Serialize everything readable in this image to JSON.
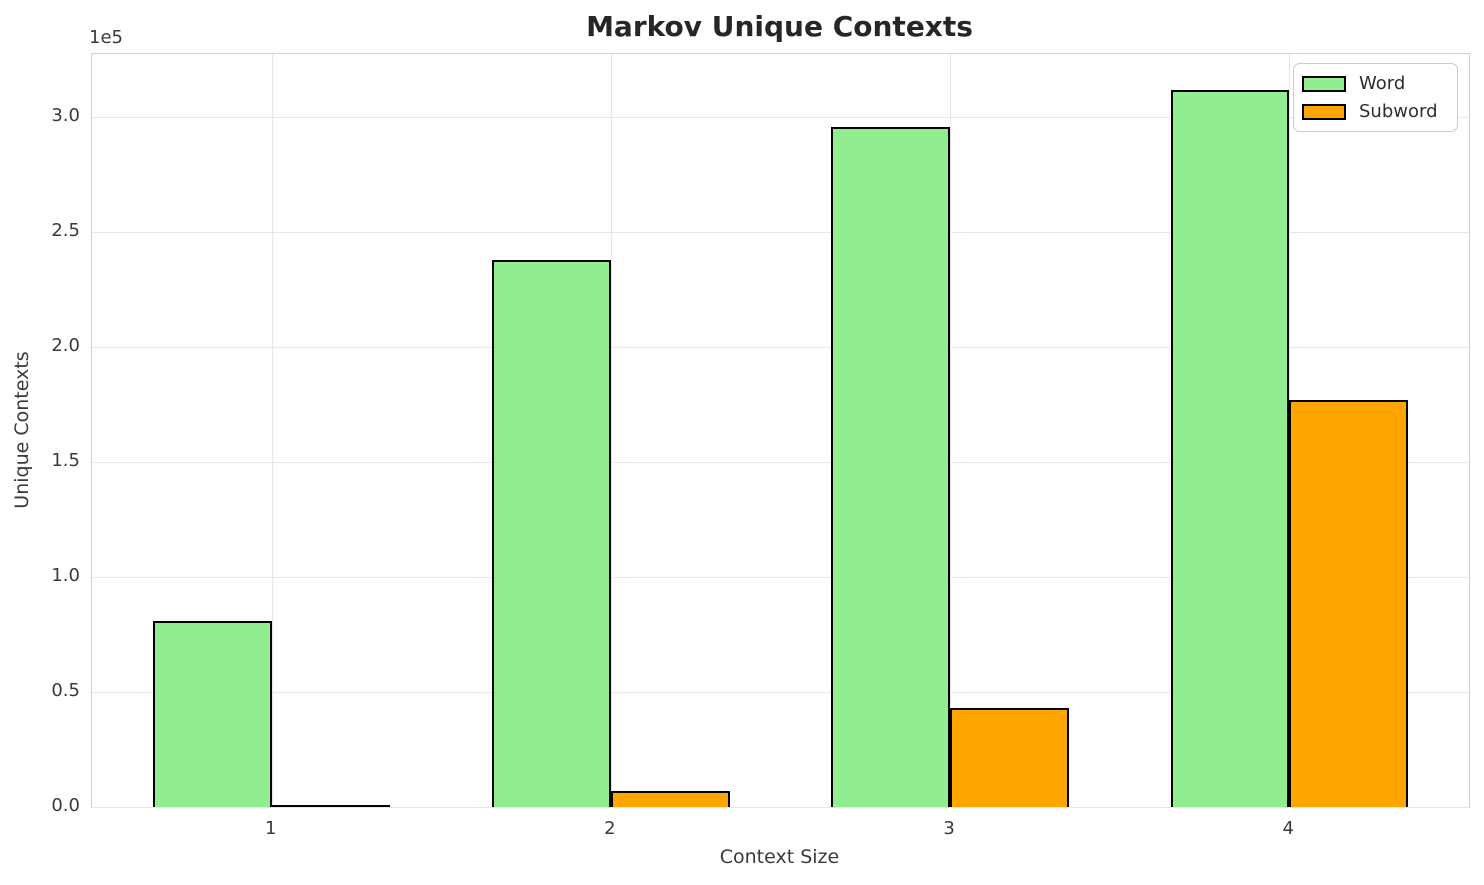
{
  "chart_data": {
    "type": "bar",
    "title": "Markov Unique Contexts",
    "xlabel": "Context Size",
    "ylabel": "Unique Contexts",
    "y_offset_label": "1e5",
    "categories": [
      1,
      2,
      3,
      4
    ],
    "xtick_labels": [
      "1",
      "2",
      "3",
      "4"
    ],
    "series": [
      {
        "name": "Word",
        "color": "#90EE90",
        "values": [
          81000,
          238000,
          296000,
          312000
        ]
      },
      {
        "name": "Subword",
        "color": "#FFA500",
        "values": [
          1000,
          7000,
          43000,
          177000
        ]
      }
    ],
    "bar_edge_color": "#000000",
    "bar_width": 0.35,
    "xlim": [
      0.47,
      4.53
    ],
    "ylim": [
      0,
      327600
    ],
    "yticks": [
      0,
      50000,
      100000,
      150000,
      200000,
      250000,
      300000
    ],
    "ytick_labels": [
      "0.0",
      "0.5",
      "1.0",
      "1.5",
      "2.0",
      "2.5",
      "3.0"
    ],
    "grid": true,
    "legend_position": "upper right"
  },
  "colors": {
    "grid": "#e7e7e7",
    "spine": "#d0d0d0",
    "text": "#3a3a3a",
    "title": "#262626",
    "bar_edge": "#000000"
  }
}
